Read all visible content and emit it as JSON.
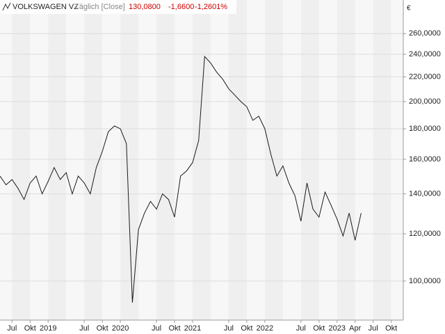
{
  "chart_data": {
    "type": "line",
    "header": {
      "mode": "Täglich [Close]",
      "last": "130,0800",
      "change": "-1,6600",
      "change_pct": "-1,2601%"
    },
    "currency": "€",
    "x": [
      "2018-05",
      "2018-06",
      "2018-07",
      "2018-08",
      "2018-09",
      "2018-10",
      "2018-11",
      "2018-12",
      "2019-01",
      "2019-02",
      "2019-03",
      "2019-04",
      "2019-05",
      "2019-06",
      "2019-07",
      "2019-08",
      "2019-09",
      "2019-10",
      "2019-11",
      "2019-12",
      "2020-01",
      "2020-02",
      "2020-03",
      "2020-04",
      "2020-05",
      "2020-06",
      "2020-07",
      "2020-08",
      "2020-09",
      "2020-10",
      "2020-11",
      "2020-12",
      "2021-01",
      "2021-02",
      "2021-03",
      "2021-04",
      "2021-05",
      "2021-06",
      "2021-07",
      "2021-08",
      "2021-09",
      "2021-10",
      "2021-11",
      "2021-12",
      "2022-01",
      "2022-02",
      "2022-03",
      "2022-04",
      "2022-05",
      "2022-06",
      "2022-07",
      "2022-08",
      "2022-09",
      "2022-10",
      "2022-11",
      "2022-12",
      "2023-01",
      "2023-02",
      "2023-03",
      "2023-04",
      "2023-05"
    ],
    "series": [
      {
        "name": "VOLKSWAGEN VZ",
        "color": "#1a1a1a",
        "values": [
          150,
          145,
          148,
          143,
          137,
          146,
          150,
          140,
          147,
          155,
          148,
          152,
          140,
          150,
          146,
          140,
          155,
          165,
          178,
          182,
          180,
          170,
          92,
          122,
          130,
          136,
          132,
          140,
          137,
          128,
          150,
          153,
          158,
          172,
          238,
          232,
          224,
          218,
          210,
          205,
          200,
          196,
          186,
          189,
          180,
          163,
          150,
          156,
          146,
          139,
          126,
          146,
          132,
          128,
          141,
          134,
          127,
          119,
          130,
          117,
          130
        ]
      }
    ],
    "xlim": [
      "2018-05",
      "2023-12"
    ],
    "xticks": [
      {
        "value": "2018-07",
        "label": "Jul"
      },
      {
        "value": "2018-10",
        "label": "Okt"
      },
      {
        "value": "2019-01",
        "label": "2019"
      },
      {
        "value": "2019-07",
        "label": "Jul"
      },
      {
        "value": "2019-10",
        "label": "Okt"
      },
      {
        "value": "2020-01",
        "label": "2020"
      },
      {
        "value": "2020-07",
        "label": "Jul"
      },
      {
        "value": "2020-10",
        "label": "Okt"
      },
      {
        "value": "2021-01",
        "label": "2021"
      },
      {
        "value": "2021-07",
        "label": "Jul"
      },
      {
        "value": "2021-10",
        "label": "Okt"
      },
      {
        "value": "2022-01",
        "label": "2022"
      },
      {
        "value": "2022-07",
        "label": "Jul"
      },
      {
        "value": "2022-10",
        "label": "Okt"
      },
      {
        "value": "2023-01",
        "label": "2023"
      },
      {
        "value": "2023-04",
        "label": "Apr"
      },
      {
        "value": "2023-07",
        "label": "Jul"
      },
      {
        "value": "2023-10",
        "label": "Okt"
      }
    ],
    "ylim": [
      86,
      296
    ],
    "log_scale": true,
    "grid": true,
    "yticks": [
      {
        "value": 100,
        "label": "100,0000"
      },
      {
        "value": 120,
        "label": "120,0000"
      },
      {
        "value": 140,
        "label": "140,0000"
      },
      {
        "value": 160,
        "label": "160,0000"
      },
      {
        "value": 180,
        "label": "180,0000"
      },
      {
        "value": 200,
        "label": "200,0000"
      },
      {
        "value": 220,
        "label": "220,0000"
      },
      {
        "value": 240,
        "label": "240,0000"
      },
      {
        "value": 260,
        "label": "260,0000"
      }
    ]
  }
}
